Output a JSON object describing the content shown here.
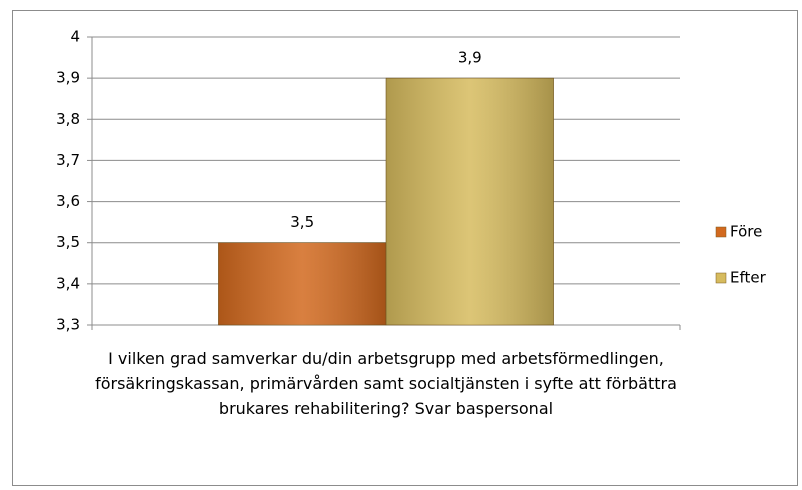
{
  "chart_data": {
    "type": "bar",
    "categories": [
      "I vilken grad samverkar du/din arbetsgrupp med arbetsförmedlingen, försäkringskassan, primärvården samt socialtjänsten i syfte att förbättra brukares rehabilitering? Svar baspersonal"
    ],
    "series": [
      {
        "name": "Före",
        "color": "#d2691e",
        "values": [
          3.5
        ],
        "value_labels": [
          "3,5"
        ]
      },
      {
        "name": "Efter",
        "color": "#d6bb5e",
        "values": [
          3.9
        ],
        "value_labels": [
          "3,9"
        ]
      }
    ],
    "ylim": [
      3.3,
      4
    ],
    "yticks": [
      {
        "value": 3.3,
        "label": "3,3"
      },
      {
        "value": 3.4,
        "label": "3,4"
      },
      {
        "value": 3.5,
        "label": "3,5"
      },
      {
        "value": 3.6,
        "label": "3,6"
      },
      {
        "value": 3.7,
        "label": "3,7"
      },
      {
        "value": 3.8,
        "label": "3,8"
      },
      {
        "value": 3.9,
        "label": "3,9"
      },
      4
    ],
    "grid": true,
    "legend": "right"
  }
}
